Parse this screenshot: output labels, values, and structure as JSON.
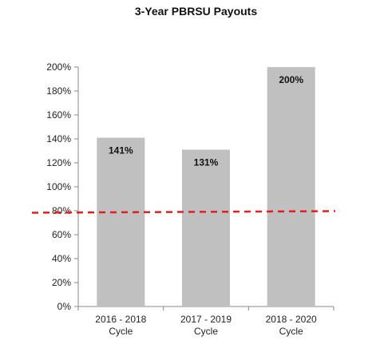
{
  "chart_data": {
    "type": "bar",
    "title": "3-Year PBRSU Payouts",
    "categories": [
      [
        "2016 - 2018",
        "Cycle"
      ],
      [
        "2017 - 2019",
        "Cycle"
      ],
      [
        "2018 - 2020",
        "Cycle"
      ]
    ],
    "values": [
      141,
      131,
      200
    ],
    "data_labels": [
      "141%",
      "131%",
      "200%"
    ],
    "y_ticks": [
      "0%",
      "20%",
      "40%",
      "60%",
      "80%",
      "100%",
      "120%",
      "140%",
      "160%",
      "180%",
      "200%"
    ],
    "ylim": [
      0,
      200
    ],
    "reference_line": {
      "value": 79,
      "style": "dashed",
      "color": "#e02020"
    },
    "bar_color": "#c0c0c0",
    "grid": false,
    "legend": "none"
  }
}
